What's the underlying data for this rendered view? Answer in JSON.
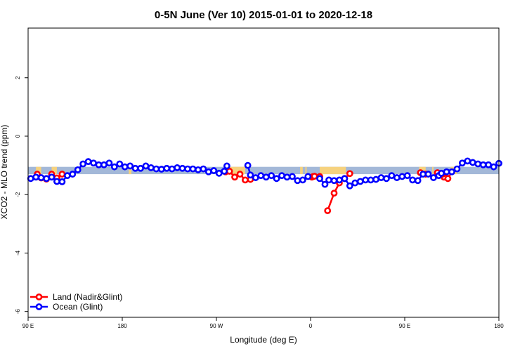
{
  "chart_data": {
    "type": "line",
    "title": "0-5N June (Ver 10)   2015-01-01 to 2020-12-18",
    "xlabel": "Longitude (deg E)",
    "ylabel": "XCO2 - MLO trend (ppm)",
    "xlim": [
      90,
      450
    ],
    "ylim": [
      -6.2,
      3.7
    ],
    "x_ticks": [
      {
        "value": 90,
        "label": "90 E"
      },
      {
        "value": 162,
        "label": "180"
      },
      {
        "value": 234,
        "label": "90 W"
      },
      {
        "value": 306,
        "label": "0"
      },
      {
        "value": 378,
        "label": "90 E"
      },
      {
        "value": 450,
        "label": "180"
      }
    ],
    "y_ticks": [
      {
        "value": 2,
        "label": "2"
      },
      {
        "value": 0,
        "label": "0"
      },
      {
        "value": -2,
        "label": "-2"
      },
      {
        "value": -4,
        "label": "-4"
      },
      {
        "value": -6,
        "label": "-6"
      }
    ],
    "bands": [
      {
        "name": "ocean-band",
        "color": "#a3b8d8",
        "y0": -1.05,
        "y1": -1.3,
        "ranges": [
          [
            90,
            450
          ]
        ]
      },
      {
        "name": "land-band",
        "color": "#f6d27e",
        "y0": -1.05,
        "y1": -1.3,
        "ranges": [
          [
            96,
            100
          ],
          [
            108,
            112
          ],
          [
            241,
            256
          ],
          [
            298,
            300
          ],
          [
            313,
            333
          ],
          [
            167,
            169
          ],
          [
            252,
            256
          ],
          [
            302,
            303
          ],
          [
            413,
            418
          ],
          [
            389,
            394
          ],
          [
            399,
            400
          ]
        ]
      }
    ],
    "series": [
      {
        "name": "Land (Nadir&Glint)",
        "color": "#ff0000",
        "segments": [
          [
            [
              97,
              -1.3
            ],
            [
              100,
              -1.43
            ],
            [
              104,
              -1.47
            ],
            [
              108,
              -1.3
            ],
            [
              112,
              -1.43
            ],
            [
              116,
              -1.3
            ]
          ],
          [
            [
              241,
              -1.22
            ],
            [
              244,
              -1.2
            ],
            [
              248,
              -1.4
            ],
            [
              252,
              -1.3
            ],
            [
              256,
              -1.5
            ],
            [
              260,
              -1.48
            ]
          ],
          [
            [
              307,
              -1.4
            ],
            [
              308,
              -1.38
            ]
          ],
          [
            [
              407,
              -1.3
            ],
            [
              411,
              -1.28
            ]
          ],
          [
            [
              408,
              -1.4
            ],
            [
              411,
              -1.45
            ]
          ],
          [
            [
              390,
              -1.25
            ],
            [
              394,
              -1.3
            ]
          ],
          [
            [
              403,
              -1.25
            ],
            [
              407,
              -1.3
            ]
          ],
          [
            [
              309,
              -1.37
            ],
            [
              313,
              -1.38
            ]
          ],
          [
            [
              319,
              -2.55
            ],
            [
              324,
              -1.95
            ],
            [
              328,
              -1.6
            ],
            [
              332,
              -1.45
            ],
            [
              336,
              -1.28
            ]
          ]
        ]
      },
      {
        "name": "Ocean (Glint)",
        "color": "#0000ff",
        "segments": [
          [
            [
              92,
              -1.45
            ],
            [
              96,
              -1.4
            ],
            [
              100,
              -1.42
            ],
            [
              104,
              -1.45
            ],
            [
              108,
              -1.4
            ],
            [
              112,
              -1.55
            ],
            [
              116,
              -1.56
            ],
            [
              120,
              -1.35
            ],
            [
              124,
              -1.3
            ],
            [
              128,
              -1.15
            ],
            [
              132,
              -0.95
            ],
            [
              136,
              -0.87
            ],
            [
              140,
              -0.92
            ],
            [
              144,
              -0.98
            ],
            [
              148,
              -0.98
            ],
            [
              152,
              -0.92
            ],
            [
              156,
              -1.05
            ],
            [
              160,
              -0.95
            ],
            [
              164,
              -1.05
            ],
            [
              168,
              -1.02
            ],
            [
              172,
              -1.1
            ],
            [
              176,
              -1.1
            ],
            [
              180,
              -1.02
            ],
            [
              184,
              -1.08
            ],
            [
              188,
              -1.12
            ],
            [
              192,
              -1.13
            ],
            [
              196,
              -1.1
            ],
            [
              200,
              -1.12
            ],
            [
              204,
              -1.08
            ],
            [
              208,
              -1.1
            ],
            [
              212,
              -1.12
            ],
            [
              216,
              -1.12
            ],
            [
              220,
              -1.15
            ],
            [
              224,
              -1.12
            ],
            [
              228,
              -1.22
            ],
            [
              232,
              -1.18
            ],
            [
              236,
              -1.27
            ],
            [
              240,
              -1.2
            ],
            [
              242,
              -1.02
            ]
          ],
          [
            [
              258,
              -1.0
            ],
            [
              260,
              -1.33
            ],
            [
              264,
              -1.42
            ],
            [
              268,
              -1.35
            ],
            [
              272,
              -1.4
            ],
            [
              276,
              -1.35
            ],
            [
              280,
              -1.45
            ],
            [
              284,
              -1.35
            ],
            [
              288,
              -1.4
            ],
            [
              292,
              -1.38
            ],
            [
              296,
              -1.52
            ],
            [
              300,
              -1.5
            ],
            [
              304,
              -1.38
            ]
          ],
          [
            [
              313,
              -1.45
            ],
            [
              317,
              -1.65
            ],
            [
              320,
              -1.5
            ],
            [
              324,
              -1.52
            ],
            [
              328,
              -1.5
            ],
            [
              332,
              -1.45
            ],
            [
              336,
              -1.7
            ],
            [
              340,
              -1.6
            ],
            [
              344,
              -1.55
            ],
            [
              348,
              -1.5
            ],
            [
              352,
              -1.5
            ],
            [
              356,
              -1.48
            ],
            [
              360,
              -1.42
            ],
            [
              364,
              -1.45
            ],
            [
              368,
              -1.35
            ],
            [
              372,
              -1.42
            ],
            [
              376,
              -1.38
            ],
            [
              380,
              -1.35
            ],
            [
              384,
              -1.5
            ],
            [
              388,
              -1.52
            ],
            [
              392,
              -1.3
            ],
            [
              396,
              -1.3
            ],
            [
              400,
              -1.42
            ],
            [
              404,
              -1.35
            ],
            [
              406,
              -1.27
            ],
            [
              410,
              -1.22
            ],
            [
              414,
              -1.22
            ],
            [
              418,
              -1.12
            ],
            [
              422,
              -0.92
            ],
            [
              426,
              -0.85
            ],
            [
              430,
              -0.9
            ],
            [
              434,
              -0.95
            ],
            [
              438,
              -0.98
            ],
            [
              442,
              -0.98
            ],
            [
              446,
              -1.05
            ],
            [
              450,
              -0.93
            ]
          ]
        ]
      }
    ],
    "legend": {
      "position": "bottom-left",
      "entries": [
        {
          "label": "Land (Nadir&Glint)",
          "color": "#ff0000"
        },
        {
          "label": "Ocean (Glint)",
          "color": "#0000ff"
        }
      ]
    }
  }
}
